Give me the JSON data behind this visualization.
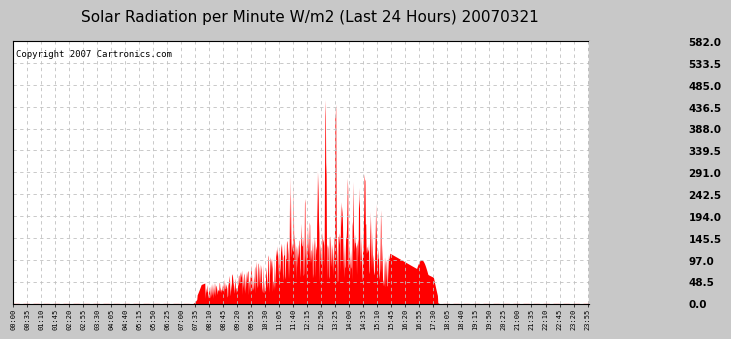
{
  "title": "Solar Radiation per Minute W/m2 (Last 24 Hours) 20070321",
  "copyright": "Copyright 2007 Cartronics.com",
  "yticks": [
    0.0,
    48.5,
    97.0,
    145.5,
    194.0,
    242.5,
    291.0,
    339.5,
    388.0,
    436.5,
    485.0,
    533.5,
    582.0
  ],
  "ymax": 582.0,
  "ymin": 0.0,
  "fill_color": "#FF0000",
  "dashed_line_color": "#FF0000",
  "grid_color": "#C0C0C0",
  "bg_color": "#FFFFFF",
  "outer_bg": "#C8C8C8",
  "title_fontsize": 11,
  "copyright_fontsize": 6.5,
  "xtick_interval": 35,
  "n_minutes": 1440
}
